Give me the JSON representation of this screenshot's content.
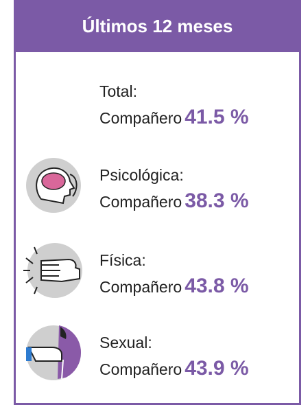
{
  "header": {
    "title": "Últimos 12 meses"
  },
  "items": [
    {
      "label": "Total:",
      "sublabel": "Compañero",
      "value": "41.5 %"
    },
    {
      "label": "Psicológica:",
      "sublabel": "Compañero",
      "value": "38.3 %"
    },
    {
      "label": "Física:",
      "sublabel": "Compañero",
      "value": "43.8 %"
    },
    {
      "label": "Sexual:",
      "sublabel": "Compañero",
      "value": "43.9 %"
    }
  ]
}
